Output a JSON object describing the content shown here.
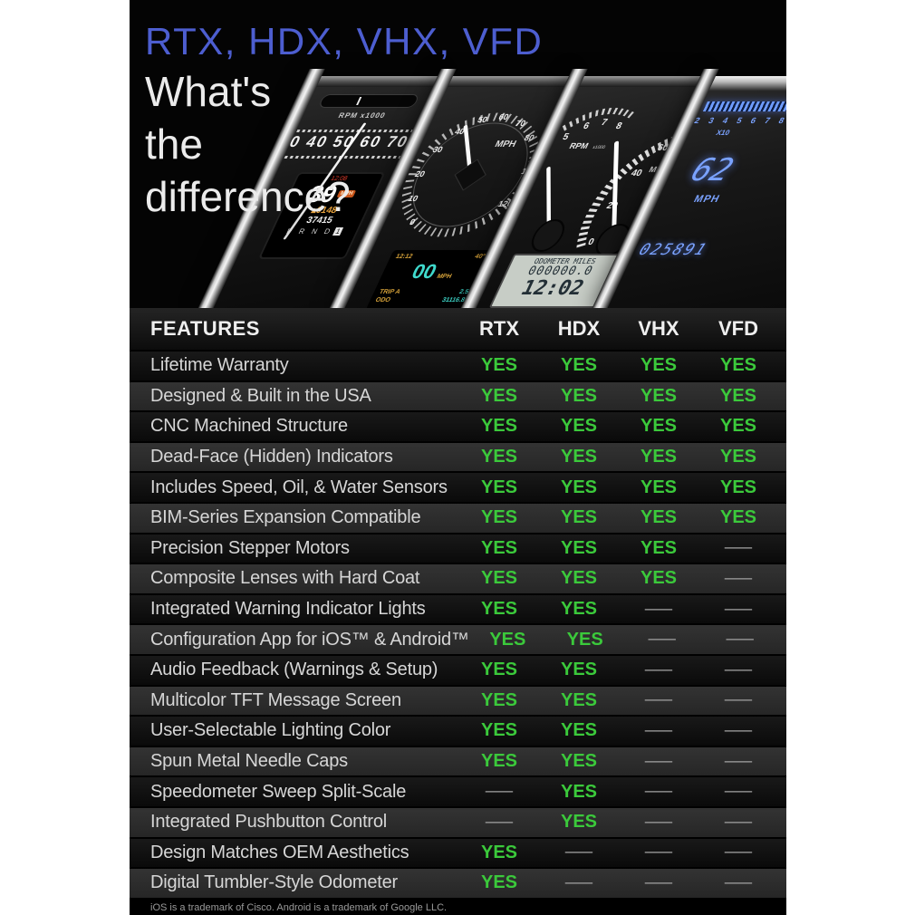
{
  "chart_data": {
    "type": "table",
    "title": "RTX, HDX, VHX, VFD — What's the difference?",
    "columns": [
      "FEATURES",
      "RTX",
      "HDX",
      "VHX",
      "VFD"
    ],
    "rows": [
      [
        "Lifetime Warranty",
        "YES",
        "YES",
        "YES",
        "YES"
      ],
      [
        "Designed & Built in the USA",
        "YES",
        "YES",
        "YES",
        "YES"
      ],
      [
        "CNC Machined Structure",
        "YES",
        "YES",
        "YES",
        "YES"
      ],
      [
        "Dead-Face (Hidden) Indicators",
        "YES",
        "YES",
        "YES",
        "YES"
      ],
      [
        "Includes Speed, Oil, & Water Sensors",
        "YES",
        "YES",
        "YES",
        "YES"
      ],
      [
        "BIM-Series Expansion Compatible",
        "YES",
        "YES",
        "YES",
        "YES"
      ],
      [
        "Precision Stepper Motors",
        "YES",
        "YES",
        "YES",
        "—"
      ],
      [
        "Composite Lenses with Hard Coat",
        "YES",
        "YES",
        "YES",
        "—"
      ],
      [
        "Integrated Warning Indicator Lights",
        "YES",
        "YES",
        "—",
        "—"
      ],
      [
        "Configuration App for iOS™ & Android™",
        "YES",
        "YES",
        "—",
        "—"
      ],
      [
        "Audio Feedback (Warnings & Setup)",
        "YES",
        "YES",
        "—",
        "—"
      ],
      [
        "Multicolor TFT Message Screen",
        "YES",
        "YES",
        "—",
        "—"
      ],
      [
        "User-Selectable Lighting Color",
        "YES",
        "YES",
        "—",
        "—"
      ],
      [
        "Spun Metal Needle Caps",
        "YES",
        "YES",
        "—",
        "—"
      ],
      [
        "Speedometer Sweep Split-Scale",
        "—",
        "YES",
        "—",
        "—"
      ],
      [
        "Integrated Pushbutton Control",
        "—",
        "YES",
        "—",
        "—"
      ],
      [
        "Design Matches OEM Aesthetics",
        "YES",
        "—",
        "—",
        "—"
      ],
      [
        "Digital Tumbler-Style Odometer",
        "YES",
        "—",
        "—",
        "—"
      ]
    ]
  },
  "header": {
    "title": "RTX, HDX, VHX, VFD",
    "subtitle_lines": [
      "What's",
      "the",
      "difference?"
    ],
    "panels": {
      "rtx": {
        "rpm_label": "RPM x1000",
        "speedo_numbers": "30 40 50 60 70 80 9",
        "tft": {
          "clock": "12:08",
          "speed": "39",
          "unit": "MPH",
          "trip": "0148",
          "odometer": "37415",
          "gear": "P R N D",
          "gear_selected": "1"
        }
      },
      "hdx": {
        "unit": "MPH",
        "dial_numbers": [
          "0",
          "10",
          "20",
          "30",
          "40",
          "50",
          "60",
          "70",
          "80",
          "100",
          "120"
        ],
        "tft": {
          "clock": "12:12",
          "temp": "40°",
          "speed": "00",
          "unit": "MPH",
          "trip_label": "TRIP A",
          "trip_value": "2.5",
          "odo_label": "ODO",
          "odo_value": "31116.8"
        }
      },
      "vhx": {
        "tach_numbers": [
          "5",
          "6",
          "7",
          "8"
        ],
        "rpm_label": "RPM",
        "rpm_label_small": "x1000",
        "speedo_numbers": [
          "0",
          "20",
          "40",
          "60",
          "80"
        ],
        "unit": "MPH",
        "lcd": {
          "odometer_label": "ODOMETER MILES",
          "odometer_value": "000000.0",
          "clock": "12:02"
        }
      },
      "vfd": {
        "scale_numbers": "2 3 4 5 6 7 8",
        "scale_label": "X10",
        "speed": "62",
        "unit": "MPH",
        "odometer": "025891"
      }
    }
  },
  "footnote": "iOS is a trademark of Cisco. Android is a trademark of Google LLC.",
  "colors": {
    "accent_blue": "#4d5ed0",
    "yes_green": "#3bc93b",
    "dash_gray": "#a2a2a2",
    "vfd_blue": "#7aa2ff",
    "tft_cyan": "#3fd9cc",
    "tft_amber": "#d9a43a",
    "tft_red": "#e03a2a"
  }
}
